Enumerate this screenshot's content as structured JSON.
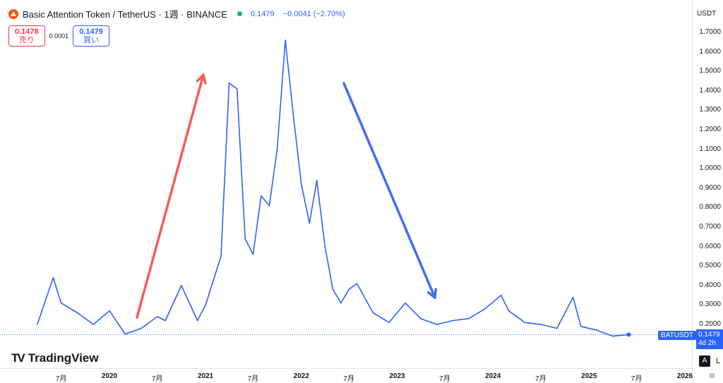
{
  "header": {
    "title": "Basic Attention Token / TetherUS · 1週 · BINANCE",
    "price": "0.1479",
    "change": "−0.0041 (−2.70%)"
  },
  "trade": {
    "sell_value": "0.1478",
    "sell_label": "売り",
    "spread": "0.0001",
    "buy_value": "0.1479",
    "buy_label": "買い"
  },
  "axis": {
    "currency": "USDT",
    "symbol_tag": "BATUSDT",
    "last_price": "0.1479",
    "countdown": "4d 2h"
  },
  "branding": {
    "logo_text": "TradingView"
  },
  "controls": {
    "auto_label": "A",
    "log_label": "L"
  },
  "colors": {
    "line": "#2962ff",
    "up_arrow": "#f75b5b",
    "down_arrow": "#3f6ef5",
    "price_line": "#2962ff"
  },
  "chart_data": {
    "type": "line",
    "series": [
      {
        "name": "BATUSDT",
        "x": [
          "2019-04",
          "2019-06",
          "2019-07",
          "2019-09",
          "2019-11",
          "2020-01",
          "2020-03",
          "2020-05",
          "2020-07",
          "2020-08",
          "2020-10",
          "2020-12",
          "2021-01",
          "2021-03",
          "2021-04",
          "2021-05",
          "2021-06",
          "2021-07",
          "2021-08",
          "2021-09",
          "2021-10",
          "2021-11",
          "2021-12",
          "2022-01",
          "2022-02",
          "2022-03",
          "2022-04",
          "2022-05",
          "2022-06",
          "2022-07",
          "2022-08",
          "2022-10",
          "2022-12",
          "2023-02",
          "2023-04",
          "2023-06",
          "2023-08",
          "2023-10",
          "2023-12",
          "2024-02",
          "2024-03",
          "2024-05",
          "2024-07",
          "2024-09",
          "2024-11",
          "2024-12",
          "2025-02",
          "2025-04",
          "2025-06"
        ],
        "values": [
          0.2,
          0.44,
          0.31,
          0.26,
          0.2,
          0.27,
          0.15,
          0.18,
          0.24,
          0.22,
          0.4,
          0.22,
          0.3,
          0.55,
          1.44,
          1.41,
          0.64,
          0.56,
          0.86,
          0.81,
          1.1,
          1.66,
          1.28,
          0.92,
          0.72,
          0.94,
          0.6,
          0.38,
          0.31,
          0.38,
          0.41,
          0.26,
          0.21,
          0.31,
          0.23,
          0.2,
          0.22,
          0.23,
          0.28,
          0.35,
          0.27,
          0.21,
          0.2,
          0.18,
          0.34,
          0.19,
          0.17,
          0.14,
          0.1479
        ]
      }
    ],
    "annotations": [
      {
        "type": "arrow",
        "direction": "up"
      },
      {
        "type": "arrow",
        "direction": "down"
      }
    ],
    "yticks": [
      "1.7000",
      "1.6000",
      "1.5000",
      "1.4000",
      "1.3000",
      "1.2000",
      "1.1000",
      "1.0000",
      "0.9000",
      "0.8000",
      "0.7000",
      "0.6000",
      "0.5000",
      "0.4000",
      "0.3000",
      "0.2000"
    ],
    "xticks": [
      "7月",
      "2020",
      "7月",
      "2021",
      "7月",
      "2022",
      "7月",
      "2023",
      "7月",
      "2024",
      "7月",
      "2025",
      "7月",
      "2026"
    ],
    "ylim": [
      0.12,
      1.74
    ],
    "last_price": 0.1479,
    "grid": false
  }
}
